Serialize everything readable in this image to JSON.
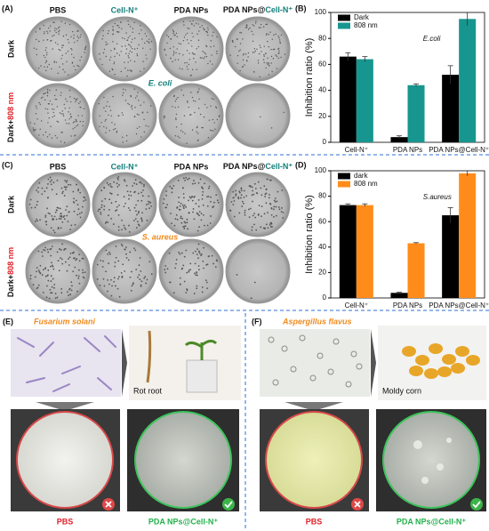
{
  "panels": {
    "A": {
      "label": "(A)",
      "columns": [
        [
          "PBS"
        ],
        [
          "Cell-N⁺"
        ],
        [
          "PDA NPs"
        ],
        [
          "PDA NPs@",
          "Cell-N⁺"
        ]
      ],
      "rows": [
        [
          "Dark"
        ],
        [
          "Dark+",
          "808 nm"
        ]
      ],
      "organism": "E. coli"
    },
    "C": {
      "label": "(C)",
      "columns": [
        [
          "PBS"
        ],
        [
          "Cell-N⁺"
        ],
        [
          "PDA NPs"
        ],
        [
          "PDA NPs@",
          "Cell-N⁺"
        ]
      ],
      "rows": [
        [
          "Dark"
        ],
        [
          "Dark+",
          "808 nm"
        ]
      ],
      "organism": "S. aureus"
    },
    "E": {
      "label": "(E)",
      "organism": "Fusarium solani",
      "photo_label": "Rot root",
      "left_dish": "PBS",
      "right_dish": "PDA NPs@Cell-N⁺"
    },
    "F": {
      "label": "(F)",
      "organism": "Aspergillus flavus",
      "photo_label": "Moldy corn",
      "left_dish": "PBS",
      "right_dish": "PDA NPs@Cell-N⁺"
    }
  },
  "chart_data": [
    {
      "type": "bar",
      "panel_label": "(B)",
      "y_label": "Inhibition ratio (%)",
      "annotation": "E.coli",
      "categories": [
        "Cell-N⁺",
        "PDA NPs",
        "PDA NPs@Cell-N⁺"
      ],
      "series": [
        {
          "name": "Dark",
          "color": "#000000",
          "values": [
            66,
            4,
            52
          ],
          "errors": [
            3,
            1,
            7
          ]
        },
        {
          "name": "808 nm",
          "color": "#17968f",
          "values": [
            64,
            44,
            95
          ],
          "errors": [
            2,
            1,
            5
          ]
        }
      ],
      "ylim": [
        0,
        100
      ],
      "yticks": [
        0,
        20,
        40,
        60,
        80,
        100
      ],
      "grid": false,
      "legend": "upper left"
    },
    {
      "type": "bar",
      "panel_label": "(D)",
      "y_label": "Inhibition ratio (%)",
      "annotation": "S.aureus",
      "categories": [
        "Cell-N⁺",
        "PDA NPs",
        "PDA NPs@Cell-N⁺"
      ],
      "series": [
        {
          "name": "dark",
          "color": "#000000",
          "values": [
            73,
            4,
            65
          ],
          "errors": [
            1,
            0.5,
            6
          ]
        },
        {
          "name": "808 nm",
          "color": "#ff8c1a",
          "values": [
            73,
            43,
            98
          ],
          "errors": [
            1,
            0.5,
            2
          ]
        }
      ],
      "ylim": [
        0,
        100
      ],
      "yticks": [
        0,
        20,
        40,
        60,
        80,
        100
      ],
      "grid": false,
      "legend": "upper left"
    }
  ]
}
